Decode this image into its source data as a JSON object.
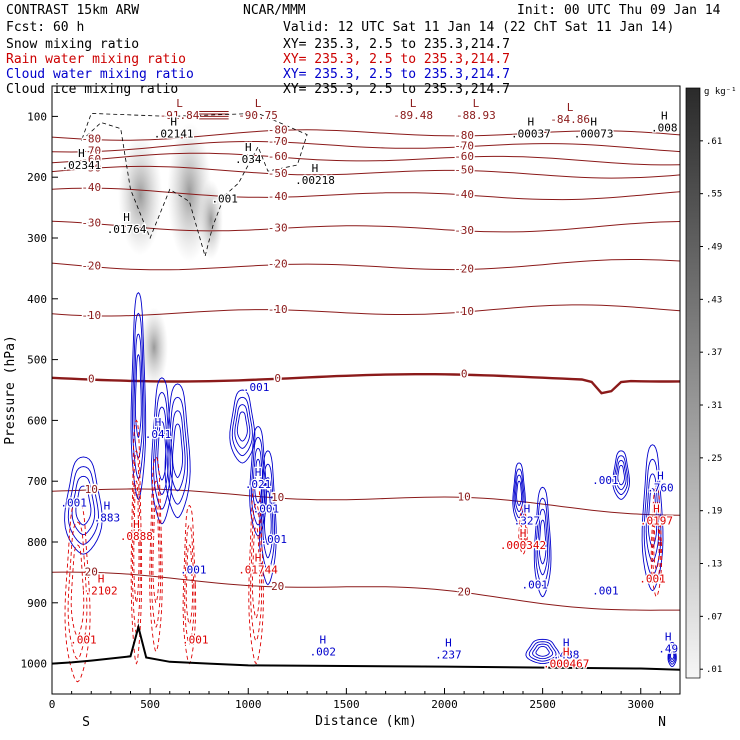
{
  "header": {
    "model": "CONTRAST 15km ARW",
    "org": "NCAR/MMM",
    "init": "Init: 00 UTC Thu 09 Jan 14",
    "fcst": "Fcst:    60 h",
    "valid": "Valid: 12 UTC Sat 11 Jan 14 (22 ChT Sat 11 Jan 14)"
  },
  "legend": [
    {
      "name": "Snow mixing ratio",
      "color": "#000000",
      "xy": ""
    },
    {
      "name": "Rain water mixing ratio",
      "color": "#cc0000",
      "xy": "XY= 235.3,  2.5 to 235.3,214.7"
    },
    {
      "name": "Cloud water mixing ratio",
      "color": "#0000cc",
      "xy": "XY= 235.3,  2.5 to 235.3,214.7"
    },
    {
      "name": "Cloud ice mixing ratio",
      "color": "#000000",
      "xy": "XY= 235.3,  2.5 to 235.3,214.7"
    }
  ],
  "snow_xy": "XY= 235.3,  2.5 to 235.3,214.7",
  "chart_data": {
    "type": "cross-section",
    "xlabel": "Distance (km)",
    "ylabel": "Pressure (hPa)",
    "xlim": [
      0,
      3200
    ],
    "ylim": [
      1050,
      50
    ],
    "xticks": [
      0,
      500,
      1000,
      1500,
      2000,
      2500,
      3000
    ],
    "yticks": [
      100,
      200,
      300,
      400,
      500,
      600,
      700,
      800,
      900,
      1000
    ],
    "end_labels": {
      "left": "S",
      "right": "N"
    },
    "colorbar": {
      "unit": "g kg⁻¹",
      "ticks": [
        0.01,
        0.07,
        0.13,
        0.19,
        0.25,
        0.31,
        0.37,
        0.43,
        0.49,
        0.55,
        0.61
      ],
      "tick_labels": [
        ".01",
        ".07",
        ".13",
        ".19",
        ".25",
        ".31",
        ".37",
        ".43",
        ".49",
        ".55",
        ".61"
      ],
      "max": 0.67
    },
    "colors": {
      "temperature": "#8b1a1a",
      "rain": "#dd0000",
      "cloud_water": "#0000cc",
      "snow_ice": "#000000",
      "terrain": "#000000"
    },
    "temperature_levels": [
      {
        "label": "-80",
        "p": 130
      },
      {
        "label": "-70",
        "p": 150
      },
      {
        "label": "-60",
        "p": 170
      },
      {
        "label": "-50",
        "p": 192
      },
      {
        "label": "-40",
        "p": 228
      },
      {
        "label": "-30",
        "p": 282
      },
      {
        "label": "-20",
        "p": 345
      },
      {
        "label": "-10",
        "p": 420
      },
      {
        "label": "0",
        "p": 530
      },
      {
        "label": "10",
        "p": 710
      },
      {
        "label": "20",
        "p": 850
      }
    ],
    "terrain": [
      [
        0,
        1000
      ],
      [
        100,
        998
      ],
      [
        200,
        995
      ],
      [
        400,
        988
      ],
      [
        440,
        940
      ],
      [
        480,
        990
      ],
      [
        600,
        997
      ],
      [
        800,
        1000
      ],
      [
        1000,
        1003
      ],
      [
        2000,
        1005
      ],
      [
        3000,
        1008
      ],
      [
        3200,
        1010
      ]
    ],
    "max_min_labels": [
      {
        "type": "L",
        "value": "-91.84",
        "x": 650,
        "p": 98,
        "color": "temperature"
      },
      {
        "type": "L",
        "value": "-90.75",
        "x": 1050,
        "p": 98,
        "color": "temperature"
      },
      {
        "type": "L",
        "value": "-89.48",
        "x": 1840,
        "p": 98,
        "color": "temperature"
      },
      {
        "type": "L",
        "value": "-88.93",
        "x": 2160,
        "p": 98,
        "color": "temperature"
      },
      {
        "type": "L",
        "value": "-84.86",
        "x": 2640,
        "p": 104,
        "color": "temperature"
      },
      {
        "type": "H",
        "value": ".02141",
        "x": 620,
        "p": 128,
        "color": "snow_ice"
      },
      {
        "type": "H",
        "value": ".02341",
        "x": 150,
        "p": 180,
        "color": "snow_ice"
      },
      {
        "type": "H",
        "value": ".034",
        "x": 1000,
        "p": 170,
        "color": "snow_ice"
      },
      {
        "type": "H",
        "value": ".00218",
        "x": 1340,
        "p": 205,
        "color": "snow_ice"
      },
      {
        "type": "H",
        "value": ".00037",
        "x": 2440,
        "p": 128,
        "color": "snow_ice"
      },
      {
        "type": "H",
        "value": ".00073",
        "x": 2760,
        "p": 128,
        "color": "snow_ice"
      },
      {
        "type": "H",
        "value": ".008",
        "x": 3120,
        "p": 118,
        "color": "snow_ice"
      },
      {
        "type": "H",
        "value": ".01764",
        "x": 380,
        "p": 285,
        "color": "snow_ice"
      },
      {
        "type": "",
        "value": ".001",
        "x": 880,
        "p": 235,
        "color": "snow_ice"
      },
      {
        "type": "H",
        "value": ".041",
        "x": 540,
        "p": 622,
        "color": "cloud_water"
      },
      {
        "type": "H",
        "value": ".883",
        "x": 280,
        "p": 760,
        "color": "cloud_water"
      },
      {
        "type": "",
        "value": ".001",
        "x": 110,
        "p": 735,
        "color": "cloud_water"
      },
      {
        "type": "",
        "value": ".001",
        "x": 1040,
        "p": 545,
        "color": "cloud_water"
      },
      {
        "type": "H",
        "value": ".021",
        "x": 1050,
        "p": 705,
        "color": "cloud_water"
      },
      {
        "type": "",
        "value": ".001",
        "x": 1090,
        "p": 745,
        "color": "cloud_water"
      },
      {
        "type": "",
        "value": ".001",
        "x": 1130,
        "p": 795,
        "color": "cloud_water"
      },
      {
        "type": "",
        "value": ".001",
        "x": 720,
        "p": 845,
        "color": "cloud_water"
      },
      {
        "type": "H",
        "value": ".327",
        "x": 2420,
        "p": 765,
        "color": "cloud_water"
      },
      {
        "type": "",
        "value": ".001",
        "x": 2460,
        "p": 870,
        "color": "cloud_water"
      },
      {
        "type": "",
        "value": ".001",
        "x": 2820,
        "p": 880,
        "color": "cloud_water"
      },
      {
        "type": "",
        "value": ".001",
        "x": 2820,
        "p": 698,
        "color": "cloud_water"
      },
      {
        "type": "H",
        "value": ".760",
        "x": 3100,
        "p": 710,
        "color": "cloud_water"
      },
      {
        "type": "H",
        "value": ".002",
        "x": 1380,
        "p": 980,
        "color": "cloud_water"
      },
      {
        "type": "H",
        "value": ".237",
        "x": 2020,
        "p": 985,
        "color": "cloud_water"
      },
      {
        "type": "H",
        "value": ".488",
        "x": 2620,
        "p": 985,
        "color": "cloud_water"
      },
      {
        "type": "H",
        "value": ".49",
        "x": 3140,
        "p": 975,
        "color": "cloud_water"
      },
      {
        "type": "H",
        "value": ".0888",
        "x": 430,
        "p": 790,
        "color": "rain"
      },
      {
        "type": "H",
        "value": ".2102",
        "x": 250,
        "p": 880,
        "color": "rain"
      },
      {
        "type": "H",
        "value": ".01744",
        "x": 1050,
        "p": 845,
        "color": "rain"
      },
      {
        "type": "",
        "value": ".001",
        "x": 160,
        "p": 960,
        "color": "rain"
      },
      {
        "type": "",
        "value": ".001",
        "x": 730,
        "p": 960,
        "color": "rain"
      },
      {
        "type": "H",
        "value": ".000342",
        "x": 2400,
        "p": 805,
        "color": "rain"
      },
      {
        "type": "H",
        "value": ".0197",
        "x": 3080,
        "p": 765,
        "color": "rain"
      },
      {
        "type": "",
        "value": ".001",
        "x": 3060,
        "p": 860,
        "color": "rain"
      },
      {
        "type": "H",
        "value": ".000467",
        "x": 2620,
        "p": 1000,
        "color": "rain"
      }
    ]
  }
}
